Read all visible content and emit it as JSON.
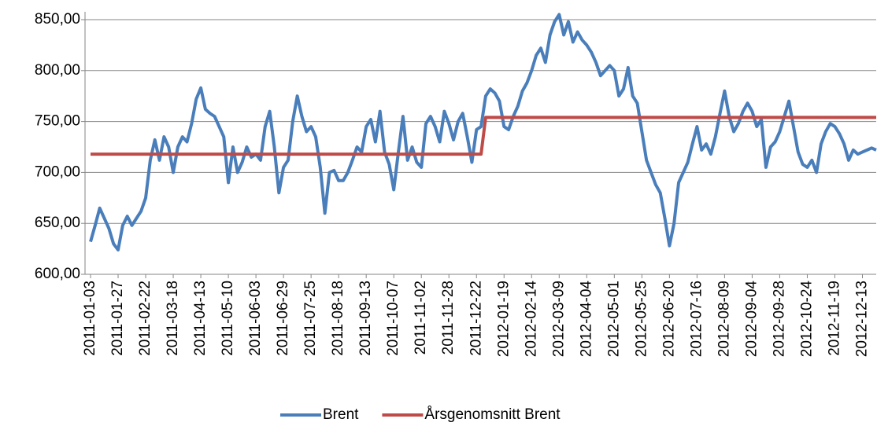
{
  "chart_data": {
    "type": "line",
    "categories": [
      "2011-01-03",
      null,
      null,
      null,
      null,
      null,
      "2011-01-27",
      null,
      null,
      null,
      null,
      null,
      "2011-02-22",
      null,
      null,
      null,
      null,
      null,
      "2011-03-18",
      null,
      null,
      null,
      null,
      null,
      "2011-04-13",
      null,
      null,
      null,
      null,
      null,
      "2011-05-10",
      null,
      null,
      null,
      null,
      null,
      "2011-06-03",
      null,
      null,
      null,
      null,
      null,
      "2011-06-29",
      null,
      null,
      null,
      null,
      null,
      "2011-07-25",
      null,
      null,
      null,
      null,
      null,
      "2011-08-18",
      null,
      null,
      null,
      null,
      null,
      "2011-09-13",
      null,
      null,
      null,
      null,
      null,
      "2011-10-07",
      null,
      null,
      null,
      null,
      null,
      "2011-11-02",
      null,
      null,
      null,
      null,
      null,
      "2011-11-28",
      null,
      null,
      null,
      null,
      null,
      "2011-12-22",
      null,
      null,
      null,
      null,
      null,
      "2012-01-19",
      null,
      null,
      null,
      null,
      null,
      "2012-02-14",
      null,
      null,
      null,
      null,
      null,
      "2012-03-09",
      null,
      null,
      null,
      null,
      null,
      "2012-04-04",
      null,
      null,
      null,
      null,
      null,
      "2012-05-01",
      null,
      null,
      null,
      null,
      null,
      "2012-05-25",
      null,
      null,
      null,
      null,
      null,
      "2012-06-20",
      null,
      null,
      null,
      null,
      null,
      "2012-07-16",
      null,
      null,
      null,
      null,
      null,
      "2012-08-09",
      null,
      null,
      null,
      null,
      null,
      "2012-09-04",
      null,
      null,
      null,
      null,
      null,
      "2012-09-28",
      null,
      null,
      null,
      null,
      null,
      "2012-10-24",
      null,
      null,
      null,
      null,
      null,
      "2012-11-19",
      null,
      null,
      null,
      null,
      null,
      "2012-12-13",
      null,
      null,
      null
    ],
    "series": [
      {
        "name": "Brent",
        "color": "#4a7ebb",
        "values": [
          632,
          648,
          665,
          655,
          645,
          630,
          624,
          648,
          657,
          648,
          655,
          662,
          675,
          712,
          732,
          712,
          735,
          725,
          700,
          725,
          735,
          730,
          748,
          772,
          783,
          762,
          758,
          755,
          745,
          735,
          690,
          725,
          700,
          710,
          725,
          715,
          718,
          712,
          745,
          760,
          725,
          680,
          705,
          712,
          750,
          775,
          755,
          740,
          745,
          735,
          705,
          660,
          700,
          702,
          692,
          692,
          700,
          712,
          725,
          720,
          745,
          752,
          730,
          760,
          720,
          708,
          683,
          720,
          755,
          712,
          725,
          710,
          705,
          748,
          755,
          745,
          730,
          760,
          748,
          732,
          750,
          758,
          735,
          710,
          742,
          745,
          775,
          782,
          778,
          770,
          745,
          742,
          755,
          765,
          780,
          788,
          800,
          815,
          822,
          808,
          835,
          848,
          855,
          835,
          848,
          828,
          838,
          830,
          825,
          818,
          808,
          795,
          800,
          805,
          800,
          775,
          782,
          803,
          775,
          768,
          740,
          712,
          700,
          688,
          680,
          655,
          628,
          650,
          690,
          700,
          710,
          728,
          745,
          722,
          728,
          718,
          735,
          758,
          780,
          755,
          740,
          748,
          760,
          768,
          760,
          745,
          752,
          705,
          725,
          730,
          740,
          755,
          770,
          745,
          720,
          708,
          705,
          712,
          700,
          728,
          740,
          748,
          745,
          738,
          728,
          712,
          722,
          718,
          720,
          722,
          724,
          722
        ]
      },
      {
        "name": "Årsgenomsnitt Brent",
        "color": "#be4b48",
        "values": [
          718,
          718,
          718,
          718,
          718,
          718,
          718,
          718,
          718,
          718,
          718,
          718,
          718,
          718,
          718,
          718,
          718,
          718,
          718,
          718,
          718,
          718,
          718,
          718,
          718,
          718,
          718,
          718,
          718,
          718,
          718,
          718,
          718,
          718,
          718,
          718,
          718,
          718,
          718,
          718,
          718,
          718,
          718,
          718,
          718,
          718,
          718,
          718,
          718,
          718,
          718,
          718,
          718,
          718,
          718,
          718,
          718,
          718,
          718,
          718,
          718,
          718,
          718,
          718,
          718,
          718,
          718,
          718,
          718,
          718,
          718,
          718,
          718,
          718,
          718,
          718,
          718,
          718,
          718,
          718,
          718,
          718,
          718,
          718,
          718,
          718,
          754,
          754,
          754,
          754,
          754,
          754,
          754,
          754,
          754,
          754,
          754,
          754,
          754,
          754,
          754,
          754,
          754,
          754,
          754,
          754,
          754,
          754,
          754,
          754,
          754,
          754,
          754,
          754,
          754,
          754,
          754,
          754,
          754,
          754,
          754,
          754,
          754,
          754,
          754,
          754,
          754,
          754,
          754,
          754,
          754,
          754,
          754,
          754,
          754,
          754,
          754,
          754,
          754,
          754,
          754,
          754,
          754,
          754,
          754,
          754,
          754,
          754,
          754,
          754,
          754,
          754,
          754,
          754,
          754,
          754,
          754,
          754,
          754,
          754,
          754,
          754,
          754,
          754,
          754,
          754,
          754,
          754,
          754,
          754,
          754,
          754
        ]
      }
    ],
    "ylim": [
      600,
      850
    ],
    "yticks": [
      {
        "value": 600,
        "label": "600,00"
      },
      {
        "value": 650,
        "label": "650,00"
      },
      {
        "value": 700,
        "label": "700,00"
      },
      {
        "value": 750,
        "label": "750,00"
      },
      {
        "value": 800,
        "label": "800,00"
      },
      {
        "value": 850,
        "label": "850,00"
      }
    ],
    "grid": true,
    "legend": "bottom"
  }
}
